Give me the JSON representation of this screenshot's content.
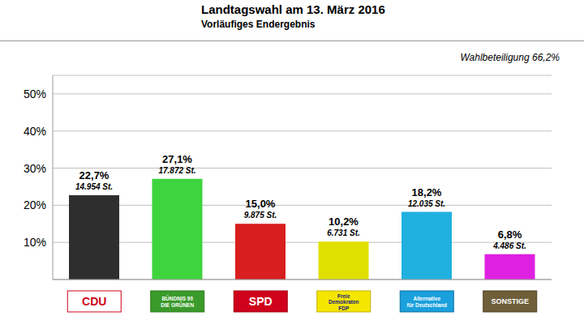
{
  "chart_data": {
    "type": "bar",
    "title": "Landtagswahl am 13. März 2016",
    "subtitle": "Vorläufiges Endergebnis",
    "annotation": "Wahlbeteiligung 66,2%",
    "categories": [
      "CDU",
      "BÜNDNIS 90\nDIE GRÜNEN",
      "SPD",
      "Freie\nDemokraten\nFDP",
      "Alternative\nfür Deutschland",
      "SONSTIGE"
    ],
    "values": [
      22.7,
      27.1,
      15.0,
      10.2,
      18.2,
      6.8
    ],
    "value_labels": [
      "22,7%",
      "27,1%",
      "15,0%",
      "10,2%",
      "18,2%",
      "6,8%"
    ],
    "vote_labels": [
      "14.954 St.",
      "17.872 St.",
      "9.875 St.",
      "6.731 St.",
      "12.035 St.",
      "4.486 St."
    ],
    "colors": [
      "#2e2e2e",
      "#3ed43e",
      "#d81e1e",
      "#e0e000",
      "#20b0e0",
      "#e020e0"
    ],
    "ylim": [
      0,
      55
    ],
    "yticks": [
      {
        "value": 10,
        "label": "10%"
      },
      {
        "value": 20,
        "label": "20%"
      },
      {
        "value": 30,
        "label": "30%"
      },
      {
        "value": 40,
        "label": "40%"
      },
      {
        "value": 50,
        "label": "50%"
      }
    ],
    "grid": true,
    "data_labels": true
  }
}
